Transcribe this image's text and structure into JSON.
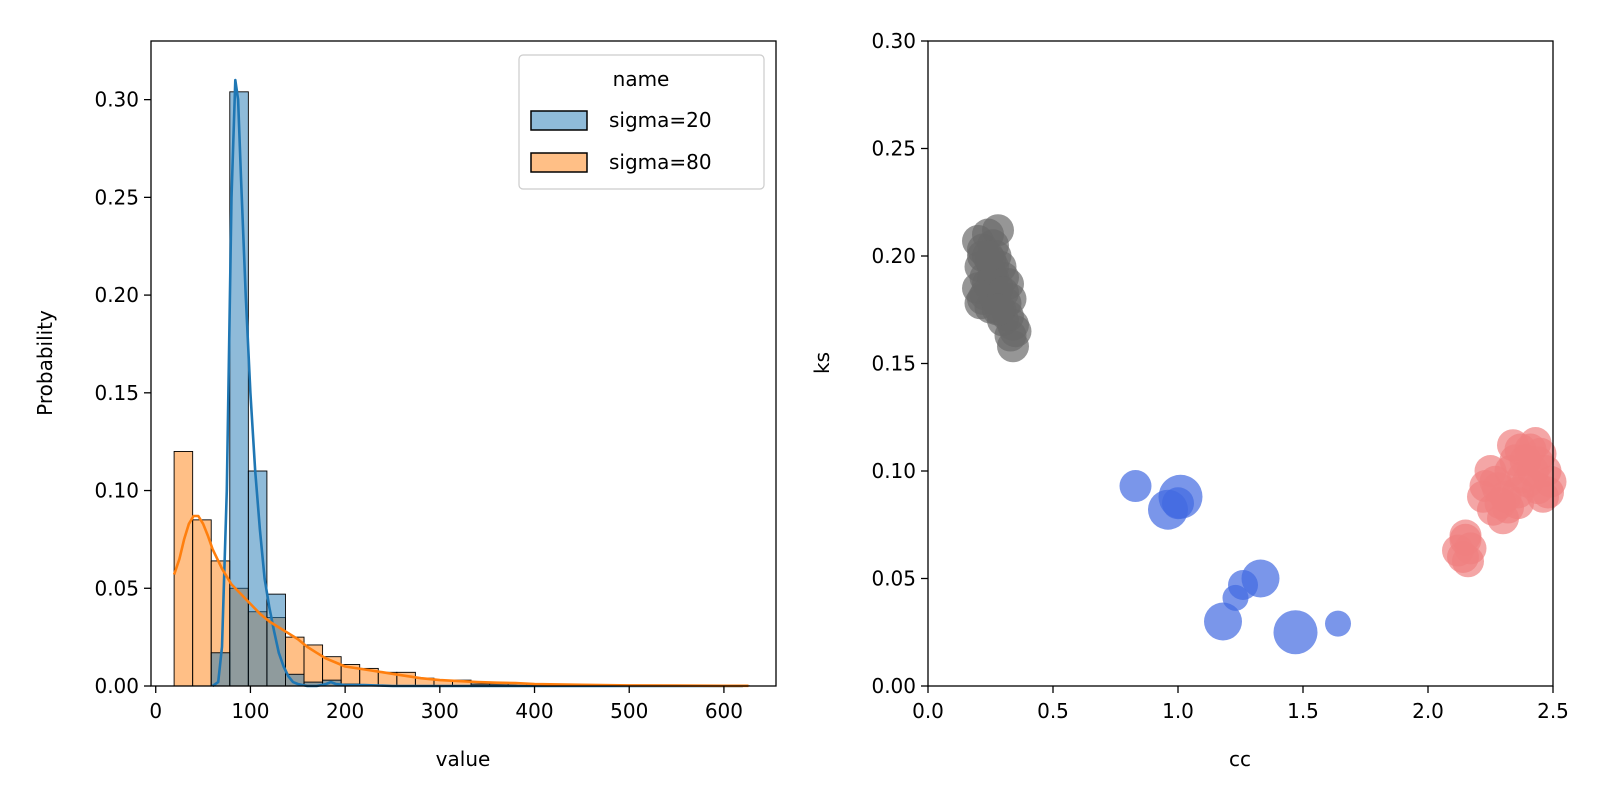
{
  "chart_data": [
    {
      "type": "bar",
      "subtype": "histogram with kde",
      "xlabel": "value",
      "ylabel": "Probability",
      "xlim": [
        -5,
        655
      ],
      "ylim": [
        0,
        0.33
      ],
      "xticks": [
        0,
        100,
        200,
        300,
        400,
        500,
        600
      ],
      "yticks": [
        0.0,
        0.05,
        0.1,
        0.15,
        0.2,
        0.25,
        0.3
      ],
      "ytick_labels": [
        "0.00",
        "0.05",
        "0.10",
        "0.15",
        "0.20",
        "0.25",
        "0.30"
      ],
      "bin_width": 19.6,
      "bin_starts": [
        19.4,
        39.0,
        58.6,
        78.2,
        97.8,
        117.4,
        137.0,
        156.6,
        176.2,
        195.8,
        215.4,
        235.0,
        254.6,
        274.2,
        293.8,
        313.4,
        333.0,
        352.6,
        372.2,
        391.8,
        411.4,
        431.0,
        450.6,
        470.2,
        489.8,
        509.4,
        529.0,
        548.6,
        568.2,
        587.8,
        607.4
      ],
      "legend": {
        "title": "name",
        "position": "top-right"
      },
      "series": [
        {
          "name": "sigma=20",
          "color": "#1f77b4",
          "bar_fill": "rgba(31,119,180,0.5)",
          "values": [
            0,
            0,
            0.017,
            0.304,
            0.11,
            0.047,
            0.006,
            0.002,
            0.003,
            0.001,
            0,
            0,
            0,
            0,
            0,
            0,
            0,
            0,
            0,
            0,
            0,
            0,
            0,
            0,
            0,
            0,
            0,
            0,
            0,
            0,
            0
          ],
          "kde": [
            [
              60,
              0.0
            ],
            [
              66,
              0.002
            ],
            [
              70,
              0.02
            ],
            [
              75,
              0.1
            ],
            [
              80,
              0.25
            ],
            [
              84,
              0.31
            ],
            [
              87,
              0.3
            ],
            [
              90,
              0.26
            ],
            [
              95,
              0.2
            ],
            [
              100,
              0.15
            ],
            [
              105,
              0.11
            ],
            [
              110,
              0.08
            ],
            [
              115,
              0.055
            ],
            [
              120,
              0.04
            ],
            [
              125,
              0.028
            ],
            [
              130,
              0.017
            ],
            [
              135,
              0.01
            ],
            [
              140,
              0.005
            ],
            [
              145,
              0.002
            ],
            [
              150,
              0.001
            ],
            [
              155,
              0.0005
            ],
            [
              160,
              0.0
            ],
            [
              170,
              0.0
            ],
            [
              180,
              0.001
            ],
            [
              185,
              0.002
            ],
            [
              190,
              0.001
            ],
            [
              200,
              0.0005
            ],
            [
              220,
              0.0005
            ],
            [
              250,
              0.0
            ],
            [
              620,
              0.0
            ]
          ]
        },
        {
          "name": "sigma=80",
          "color": "#ff7f0e",
          "bar_fill": "rgba(255,127,14,0.5)",
          "values": [
            0.12,
            0.085,
            0.064,
            0.05,
            0.038,
            0.035,
            0.025,
            0.021,
            0.015,
            0.011,
            0.009,
            0.007,
            0.007,
            0.004,
            0.003,
            0.003,
            0.001,
            0.001,
            0.001,
            0.001,
            0.001,
            0.0005,
            0.0005,
            0.0005,
            0.0003,
            0.0003,
            0.0002,
            0.0002,
            0.0001,
            0.0001,
            0.0001
          ],
          "kde": [
            [
              19.4,
              0.057
            ],
            [
              25,
              0.065
            ],
            [
              30,
              0.075
            ],
            [
              35,
              0.083
            ],
            [
              40,
              0.087
            ],
            [
              45,
              0.087
            ],
            [
              50,
              0.083
            ],
            [
              55,
              0.077
            ],
            [
              60,
              0.07
            ],
            [
              70,
              0.06
            ],
            [
              80,
              0.052
            ],
            [
              90,
              0.047
            ],
            [
              100,
              0.042
            ],
            [
              110,
              0.037
            ],
            [
              120,
              0.033
            ],
            [
              130,
              0.03
            ],
            [
              140,
              0.027
            ],
            [
              150,
              0.024
            ],
            [
              160,
              0.02
            ],
            [
              170,
              0.017
            ],
            [
              180,
              0.014
            ],
            [
              190,
              0.012
            ],
            [
              200,
              0.01
            ],
            [
              220,
              0.0085
            ],
            [
              240,
              0.007
            ],
            [
              260,
              0.0055
            ],
            [
              280,
              0.004
            ],
            [
              300,
              0.003
            ],
            [
              320,
              0.0025
            ],
            [
              340,
              0.002
            ],
            [
              360,
              0.0017
            ],
            [
              380,
              0.0015
            ],
            [
              400,
              0.001
            ],
            [
              450,
              0.0006
            ],
            [
              500,
              0.0003
            ],
            [
              550,
              0.0002
            ],
            [
              600,
              0.0001
            ],
            [
              626,
              0.0001
            ]
          ]
        }
      ]
    },
    {
      "type": "scatter",
      "xlabel": "cc",
      "ylabel": "ks",
      "xlim": [
        0,
        2.5
      ],
      "ylim": [
        0,
        0.3
      ],
      "xticks": [
        0.0,
        0.5,
        1.0,
        1.5,
        2.0,
        2.5
      ],
      "xtick_labels": [
        "0.0",
        "0.5",
        "1.0",
        "1.5",
        "2.0",
        "2.5"
      ],
      "yticks": [
        0.0,
        0.05,
        0.1,
        0.15,
        0.2,
        0.25,
        0.3
      ],
      "ytick_labels": [
        "0.00",
        "0.05",
        "0.10",
        "0.15",
        "0.20",
        "0.25",
        "0.30"
      ],
      "series": [
        {
          "color": "#696969",
          "points": [
            [
              0.2,
              0.207,
              16
            ],
            [
              0.22,
              0.2,
              16
            ],
            [
              0.24,
              0.21,
              16
            ],
            [
              0.26,
              0.205,
              16
            ],
            [
              0.28,
              0.212,
              16
            ],
            [
              0.21,
              0.195,
              16
            ],
            [
              0.23,
              0.19,
              16
            ],
            [
              0.25,
              0.198,
              16
            ],
            [
              0.27,
              0.2,
              16
            ],
            [
              0.29,
              0.195,
              16
            ],
            [
              0.2,
              0.185,
              16
            ],
            [
              0.22,
              0.18,
              16
            ],
            [
              0.24,
              0.187,
              16
            ],
            [
              0.26,
              0.19,
              16
            ],
            [
              0.28,
              0.185,
              16
            ],
            [
              0.3,
              0.19,
              16
            ],
            [
              0.32,
              0.187,
              16
            ],
            [
              0.21,
              0.178,
              16
            ],
            [
              0.23,
              0.182,
              16
            ],
            [
              0.25,
              0.176,
              16
            ],
            [
              0.27,
              0.18,
              16
            ],
            [
              0.29,
              0.175,
              16
            ],
            [
              0.31,
              0.178,
              16
            ],
            [
              0.33,
              0.18,
              16
            ],
            [
              0.3,
              0.17,
              16
            ],
            [
              0.32,
              0.172,
              16
            ],
            [
              0.34,
              0.168,
              16
            ],
            [
              0.33,
              0.163,
              16
            ],
            [
              0.35,
              0.165,
              16
            ],
            [
              0.34,
              0.158,
              16
            ],
            [
              0.26,
              0.195,
              16
            ],
            [
              0.22,
              0.203,
              16
            ],
            [
              0.3,
              0.183,
              16
            ],
            [
              0.28,
              0.175,
              16
            ],
            [
              0.24,
              0.2,
              16
            ]
          ]
        },
        {
          "color": "#4169e1",
          "points": [
            [
              0.83,
              0.093,
              16
            ],
            [
              0.96,
              0.082,
              20
            ],
            [
              1.01,
              0.088,
              22
            ],
            [
              1.0,
              0.085,
              16
            ],
            [
              1.18,
              0.03,
              19
            ],
            [
              1.23,
              0.041,
              13
            ],
            [
              1.26,
              0.047,
              15
            ],
            [
              1.33,
              0.05,
              19
            ],
            [
              1.47,
              0.025,
              22
            ],
            [
              1.64,
              0.029,
              13
            ]
          ]
        },
        {
          "color": "#f08080",
          "points": [
            [
              2.12,
              0.063,
              16
            ],
            [
              2.14,
              0.06,
              16
            ],
            [
              2.15,
              0.068,
              16
            ],
            [
              2.16,
              0.058,
              16
            ],
            [
              2.17,
              0.064,
              16
            ],
            [
              2.15,
              0.07,
              16
            ],
            [
              2.23,
              0.093,
              16
            ],
            [
              2.25,
              0.1,
              16
            ],
            [
              2.27,
              0.095,
              16
            ],
            [
              2.29,
              0.085,
              16
            ],
            [
              2.31,
              0.088,
              16
            ],
            [
              2.33,
              0.1,
              16
            ],
            [
              2.35,
              0.105,
              16
            ],
            [
              2.37,
              0.11,
              16
            ],
            [
              2.39,
              0.105,
              16
            ],
            [
              2.41,
              0.11,
              16
            ],
            [
              2.43,
              0.113,
              16
            ],
            [
              2.45,
              0.108,
              16
            ],
            [
              2.47,
              0.1,
              16
            ],
            [
              2.49,
              0.095,
              16
            ],
            [
              2.3,
              0.078,
              16
            ],
            [
              2.32,
              0.083,
              16
            ],
            [
              2.36,
              0.09,
              16
            ],
            [
              2.4,
              0.095,
              16
            ],
            [
              2.44,
              0.092,
              16
            ],
            [
              2.48,
              0.09,
              16
            ],
            [
              2.26,
              0.082,
              16
            ],
            [
              2.34,
              0.112,
              16
            ],
            [
              2.38,
              0.097,
              16
            ],
            [
              2.42,
              0.1,
              16
            ],
            [
              2.46,
              0.088,
              16
            ],
            [
              2.22,
              0.088,
              16
            ],
            [
              2.28,
              0.092,
              16
            ],
            [
              2.36,
              0.085,
              16
            ],
            [
              2.44,
              0.104,
              16
            ]
          ]
        }
      ]
    }
  ]
}
